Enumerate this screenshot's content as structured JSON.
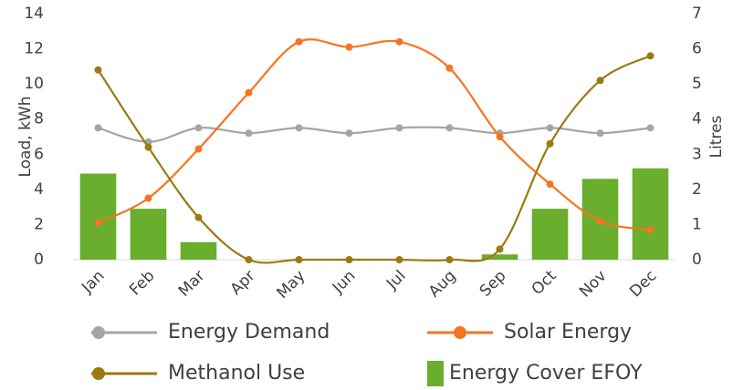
{
  "chart_data": {
    "type": "combo",
    "categories": [
      "Jan",
      "Feb",
      "Mar",
      "Apr",
      "May",
      "Jun",
      "Jul",
      "Aug",
      "Sep",
      "Oct",
      "Nov",
      "Dec"
    ],
    "ylabel": "Load, kWh",
    "y2label": "Litres",
    "ylim": [
      0,
      14
    ],
    "yticks": [
      0,
      2,
      4,
      6,
      8,
      10,
      12,
      14
    ],
    "y2lim": [
      0,
      7
    ],
    "y2ticks": [
      0,
      1,
      2,
      3,
      4,
      5,
      6,
      7
    ],
    "grid": false,
    "legend": "bottom",
    "series": [
      {
        "name": "Energy Demand",
        "kind": "line",
        "color": "#a5a5a5",
        "values": [
          7.5,
          6.7,
          7.5,
          7.2,
          7.5,
          7.2,
          7.5,
          7.5,
          7.2,
          7.5,
          7.2,
          7.5
        ]
      },
      {
        "name": "Solar Energy",
        "kind": "line",
        "color": "#f7741e",
        "values": [
          2.1,
          3.5,
          6.3,
          9.5,
          12.4,
          12.1,
          12.4,
          10.9,
          7.0,
          4.3,
          2.2,
          1.7
        ]
      },
      {
        "name": "Methanol Use",
        "kind": "line",
        "axis": "y2",
        "color": "#9c7a10",
        "values": [
          5.4,
          3.2,
          1.2,
          0,
          0,
          0,
          0,
          0,
          0.3,
          3.3,
          5.1,
          5.8
        ]
      },
      {
        "name": "Energy Cover EFOY",
        "kind": "bar",
        "color": "#6aae2d",
        "values": [
          4.9,
          2.9,
          1.0,
          0,
          0,
          0,
          0,
          0,
          0.3,
          2.9,
          4.6,
          5.2
        ]
      }
    ]
  }
}
